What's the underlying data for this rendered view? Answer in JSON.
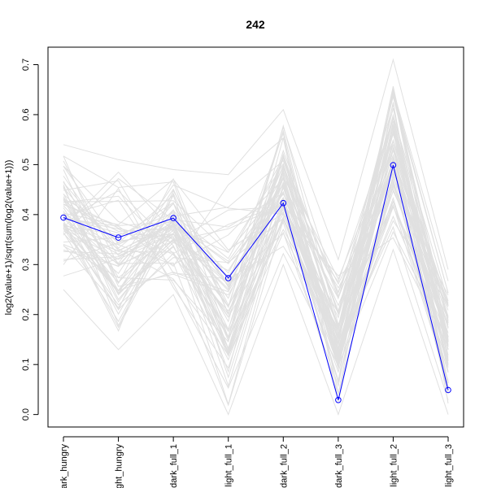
{
  "chart_data": {
    "type": "line",
    "title": "242",
    "xlabel": "",
    "ylabel": "log2(value+1)/sqrt(sum(log2(value+1)))",
    "categories": [
      "dark_hungry",
      "light_hungry",
      "dark_full_1",
      "light_full_1",
      "dark_full_2",
      "dark_full_3",
      "light_full_2",
      "light_full_3"
    ],
    "y_ticks": [
      "0.0",
      "0.1",
      "0.2",
      "0.3",
      "0.4",
      "0.5",
      "0.6",
      "0.7"
    ],
    "ylim": [
      -0.025,
      0.735
    ],
    "grid": false,
    "legend": "none",
    "series": [
      {
        "values": [
          0.394,
          0.354,
          0.393,
          0.273,
          0.423,
          0.029,
          0.499,
          0.049
        ],
        "color": "#0000ff",
        "highlighted": true
      }
    ],
    "background_band": {
      "description_color": "#e0e0e0",
      "line_count": 70,
      "low": [
        0.25,
        0.13,
        0.24,
        0.0,
        0.3,
        0.0,
        0.33,
        0.0
      ],
      "high": [
        0.54,
        0.51,
        0.49,
        0.48,
        0.61,
        0.31,
        0.71,
        0.29
      ]
    }
  },
  "colors": {
    "highlight": "#0000ff",
    "background_lines": "#e0e0e0",
    "axis": "#000000"
  }
}
